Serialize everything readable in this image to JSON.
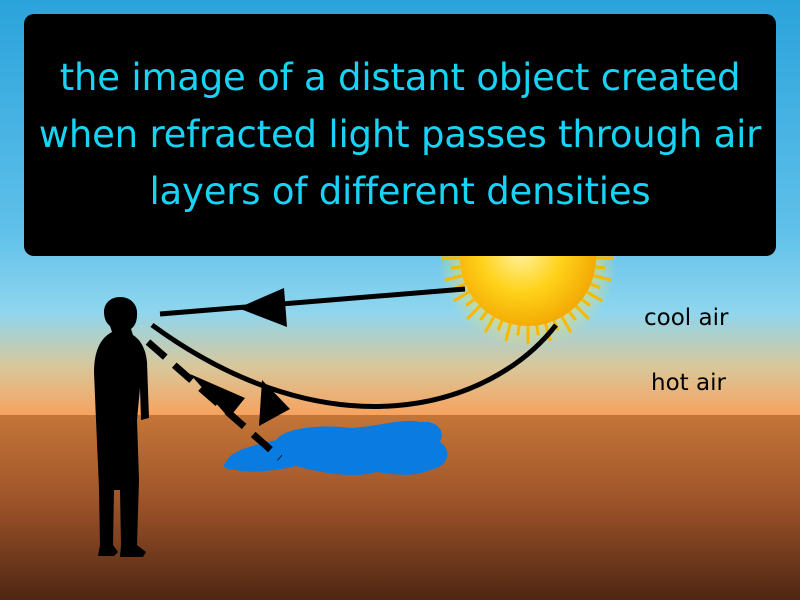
{
  "definition": {
    "text": "the image of a distant object created when refracted light passes through air layers of different densities"
  },
  "labels": {
    "cool_air": "cool air",
    "hot_air": "hot air"
  },
  "colors": {
    "sky_top": "#2aa3db",
    "sky_bottom": "#7fd0ea",
    "horizon_orange": "#f8a15c",
    "ground_top": "#c0733a",
    "ground_bottom": "#5a2d17",
    "sun": "#fbb800",
    "water": "#0a7be0",
    "text_cyan": "#17d4f5",
    "box": "#000000"
  },
  "icons": {
    "observer": "person-silhouette-icon",
    "sun": "sun-icon",
    "puddle": "water-puddle-icon"
  }
}
